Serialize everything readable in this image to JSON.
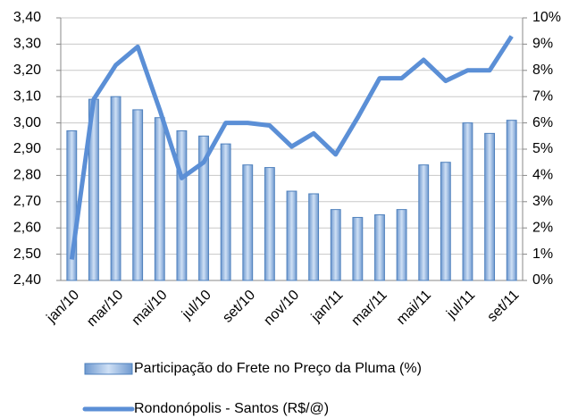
{
  "chart_data": {
    "type": "bar_line",
    "categories": [
      "jan/10",
      null,
      "mar/10",
      null,
      "mai/10",
      null,
      "jul/10",
      null,
      "set/10",
      null,
      "nov/10",
      null,
      "jan/11",
      null,
      "mar/11",
      null,
      "mai/11",
      null,
      "jul/11",
      null,
      "set/11"
    ],
    "series": [
      {
        "name": "Participação do Frete no Preço da Pluma (%)",
        "type": "bar",
        "axis": "y2",
        "color": "#8eb4e3",
        "values": [
          5.7,
          6.9,
          7.0,
          6.5,
          6.2,
          5.7,
          5.5,
          5.2,
          4.4,
          4.3,
          3.4,
          3.3,
          2.7,
          2.4,
          2.5,
          2.7,
          4.4,
          4.5,
          6.0,
          5.6,
          6.1
        ]
      },
      {
        "name": "Rondonópolis - Santos (R$/@)",
        "type": "line",
        "axis": "y",
        "color": "#5b8fd6",
        "values": [
          2.48,
          3.09,
          3.22,
          3.29,
          3.05,
          2.79,
          2.85,
          3.0,
          3.0,
          2.99,
          2.91,
          2.96,
          2.88,
          3.02,
          3.17,
          3.17,
          3.24,
          3.16,
          3.2,
          3.2,
          3.33
        ]
      }
    ],
    "ylim": [
      2.4,
      3.4
    ],
    "yticks": [
      {
        "value": 2.4,
        "label": "2,40"
      },
      {
        "value": 2.5,
        "label": "2,50"
      },
      {
        "value": 2.6,
        "label": "2,60"
      },
      {
        "value": 2.7,
        "label": "2,70"
      },
      {
        "value": 2.8,
        "label": "2,80"
      },
      {
        "value": 2.9,
        "label": "2,90"
      },
      {
        "value": 3.0,
        "label": "3,00"
      },
      {
        "value": 3.1,
        "label": "3,10"
      },
      {
        "value": 3.2,
        "label": "3,20"
      },
      {
        "value": 3.3,
        "label": "3,30"
      },
      {
        "value": 3.4,
        "label": "3,40"
      }
    ],
    "y2lim": [
      0,
      10
    ],
    "y2ticks": [
      {
        "value": 0,
        "label": "0%"
      },
      {
        "value": 1,
        "label": "1%"
      },
      {
        "value": 2,
        "label": "2%"
      },
      {
        "value": 3,
        "label": "3%"
      },
      {
        "value": 4,
        "label": "4%"
      },
      {
        "value": 5,
        "label": "5%"
      },
      {
        "value": 6,
        "label": "6%"
      },
      {
        "value": 7,
        "label": "7%"
      },
      {
        "value": 8,
        "label": "8%"
      },
      {
        "value": 9,
        "label": "9%"
      },
      {
        "value": 10,
        "label": "10%"
      }
    ],
    "grid": true,
    "legend": "bottom"
  }
}
